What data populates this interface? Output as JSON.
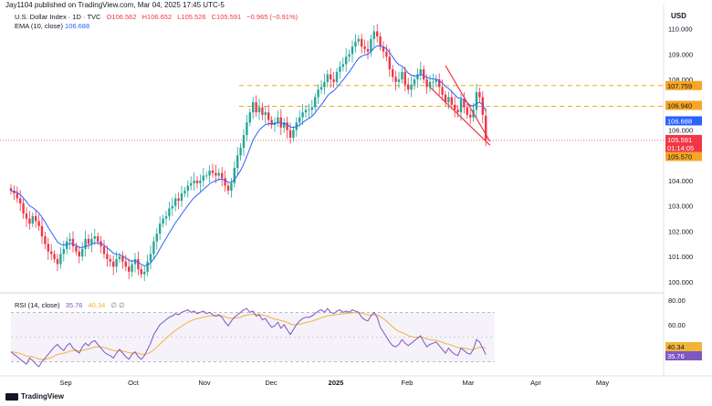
{
  "header": {
    "publisher": "Jay1104 published on TradingView.com, Mar 04, 2025 17:45 UTC-5",
    "symbol": "U.S. Dollar Index · 1D · TVC",
    "ohlc": {
      "o": "O106.562",
      "h": "H106.652",
      "l": "L105.526",
      "c": "C105.591",
      "chg": "−0.965 (−0.91%)"
    },
    "ema": {
      "label": "EMA (10, close)",
      "value": "106.688"
    }
  },
  "rsi_legend": {
    "label": "RSI (14, close)",
    "v1": "35.76",
    "v2": "40.34",
    "sym": "∅ ∅"
  },
  "currency": "USD",
  "footer": {
    "brand": "TradingView"
  },
  "colors": {
    "up": "#26a69a",
    "down": "#f23645",
    "ema": "#2962ff",
    "rsi": "#7e57c2",
    "rsi_ma": "#f2b337",
    "level": "#f5a623"
  },
  "chart_data": [
    {
      "type": "candlestick",
      "ylim": [
        99.6,
        110.6
      ],
      "yticks": [
        100,
        101,
        102,
        103,
        104,
        105,
        106,
        107,
        108,
        109,
        110
      ],
      "ytick_labels": [
        "100.000",
        "101.000",
        "102.000",
        "103.000",
        "104.000",
        "105.000",
        "106.000",
        "107.000",
        "108.000",
        "109.000",
        "110.000"
      ],
      "x_labels": [
        "Sep",
        "Oct",
        "Nov",
        "Dec",
        "2025",
        "Feb",
        "Mar",
        "Apr",
        "May"
      ],
      "closes": [
        103.6,
        103.5,
        103.3,
        103.1,
        102.7,
        102.5,
        102.3,
        102.6,
        102.4,
        102.2,
        101.8,
        101.5,
        101.2,
        101.1,
        100.9,
        100.7,
        101.1,
        101.3,
        101.6,
        101.7,
        101.4,
        101.2,
        101.0,
        101.3,
        101.7,
        101.5,
        101.7,
        101.8,
        101.6,
        101.4,
        101.1,
        100.9,
        100.8,
        100.6,
        100.9,
        101.0,
        100.8,
        100.6,
        100.4,
        100.7,
        100.9,
        100.5,
        100.3,
        100.4,
        100.8,
        101.1,
        101.6,
        101.9,
        102.3,
        102.5,
        102.6,
        102.9,
        103.0,
        103.3,
        103.2,
        103.5,
        103.6,
        103.8,
        103.9,
        104.0,
        103.9,
        104.0,
        104.2,
        104.2,
        104.4,
        104.3,
        104.2,
        104.3,
        104.1,
        103.8,
        103.6,
        103.9,
        104.5,
        105.0,
        105.3,
        105.8,
        106.3,
        106.7,
        107.1,
        106.7,
        106.9,
        106.6,
        106.7,
        106.4,
        106.2,
        106.3,
        106.5,
        106.1,
        106.3,
        106.0,
        105.7,
        106.0,
        106.3,
        106.5,
        106.7,
        106.8,
        106.8,
        106.9,
        107.3,
        107.6,
        107.7,
        107.9,
        108.2,
        108.0,
        107.9,
        108.3,
        108.5,
        108.6,
        108.9,
        109.0,
        109.3,
        109.5,
        109.6,
        109.3,
        109.2,
        109.1,
        109.6,
        109.9,
        109.7,
        109.3,
        109.1,
        108.9,
        108.4,
        108.1,
        107.9,
        108.0,
        108.3,
        107.8,
        107.6,
        107.8,
        108.0,
        108.2,
        108.4,
        108.0,
        107.7,
        107.9,
        107.9,
        108.0,
        107.7,
        107.4,
        107.1,
        107.3,
        107.0,
        106.8,
        106.7,
        107.2,
        106.9,
        106.6,
        106.5,
        106.8,
        107.5,
        107.3,
        106.6,
        105.6
      ],
      "ema_start": 103.6,
      "levels": [
        {
          "value": 107.759,
          "label": "107.759",
          "color": "#f5a623"
        },
        {
          "value": 106.94,
          "label": "106.940",
          "color": "#f5a623"
        },
        {
          "value": 105.591,
          "label": "105.591",
          "color": "#f23645",
          "sub": "01:14:05",
          "dotted": true
        },
        {
          "value": 105.57,
          "label": "105.570",
          "color": "#f5a623"
        }
      ],
      "ema_tag": {
        "value": 106.688,
        "label": "106.688"
      },
      "wedge": {
        "upper": [
          [
            140,
            108.55
          ],
          [
            152,
            105.55
          ]
        ],
        "lower": [
          [
            135,
            107.7
          ],
          [
            152,
            105.4
          ]
        ]
      }
    },
    {
      "type": "line",
      "name": "RSI (14, close)",
      "ylim": [
        20,
        85
      ],
      "yticks": [
        60,
        80
      ],
      "ytick_labels": [
        "60.00",
        "80.00"
      ],
      "band": [
        30,
        70
      ],
      "rsi": [
        38,
        36,
        34,
        32,
        30,
        28,
        33,
        31,
        28,
        26,
        30,
        33,
        36,
        39,
        42,
        44,
        41,
        39,
        43,
        45,
        41,
        39,
        37,
        42,
        45,
        43,
        46,
        47,
        44,
        41,
        38,
        36,
        35,
        33,
        37,
        40,
        37,
        34,
        32,
        36,
        38,
        34,
        32,
        35,
        40,
        45,
        52,
        56,
        60,
        62,
        64,
        66,
        67,
        69,
        68,
        70,
        71,
        72,
        70,
        71,
        69,
        70,
        71,
        69,
        70,
        68,
        67,
        68,
        66,
        62,
        59,
        63,
        66,
        68,
        70,
        72,
        73,
        70,
        71,
        67,
        68,
        64,
        65,
        61,
        58,
        59,
        62,
        57,
        60,
        56,
        52,
        56,
        60,
        63,
        65,
        66,
        66,
        67,
        69,
        71,
        72,
        70,
        73,
        70,
        69,
        71,
        72,
        70,
        71,
        70,
        72,
        71,
        70,
        66,
        64,
        63,
        67,
        70,
        66,
        58,
        54,
        50,
        46,
        43,
        42,
        44,
        48,
        45,
        43,
        45,
        47,
        49,
        51,
        46,
        42,
        44,
        45,
        46,
        43,
        40,
        37,
        41,
        38,
        36,
        35,
        41,
        39,
        37,
        36,
        40,
        48,
        46,
        41,
        35.76
      ],
      "ma_label": "40.34",
      "rsi_label": "35.76"
    }
  ]
}
